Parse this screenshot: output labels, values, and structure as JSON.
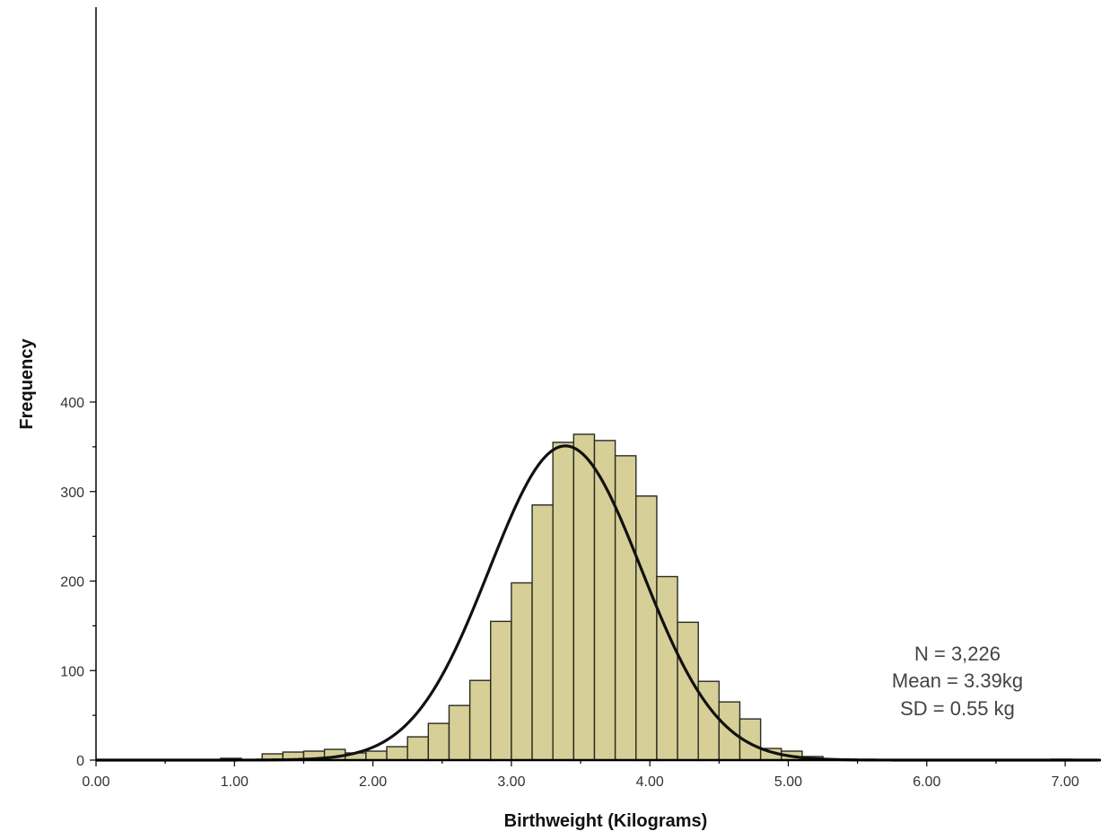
{
  "chart_data": {
    "type": "bar",
    "title": "",
    "xlabel": "Birthweight (Kilograms)",
    "ylabel": "Frequency",
    "xlim": [
      0,
      7.25
    ],
    "ylim": [
      0,
      420
    ],
    "bin_width": 0.15,
    "x_ticks": [
      "0.00",
      "1.00",
      "2.00",
      "3.00",
      "4.00",
      "5.00",
      "6.00",
      "7.00"
    ],
    "y_ticks": [
      "0",
      "100",
      "200",
      "300",
      "400"
    ],
    "bins": [
      {
        "x": 0.9,
        "value": 2
      },
      {
        "x": 1.2,
        "value": 7
      },
      {
        "x": 1.35,
        "value": 9
      },
      {
        "x": 1.5,
        "value": 10
      },
      {
        "x": 1.65,
        "value": 12
      },
      {
        "x": 1.8,
        "value": 8
      },
      {
        "x": 1.95,
        "value": 10
      },
      {
        "x": 2.1,
        "value": 15
      },
      {
        "x": 2.25,
        "value": 26
      },
      {
        "x": 2.4,
        "value": 41
      },
      {
        "x": 2.55,
        "value": 61
      },
      {
        "x": 2.7,
        "value": 89
      },
      {
        "x": 2.85,
        "value": 155
      },
      {
        "x": 3.0,
        "value": 198
      },
      {
        "x": 3.15,
        "value": 285
      },
      {
        "x": 3.3,
        "value": 355
      },
      {
        "x": 3.45,
        "value": 364
      },
      {
        "x": 3.6,
        "value": 357
      },
      {
        "x": 3.75,
        "value": 340
      },
      {
        "x": 3.9,
        "value": 295
      },
      {
        "x": 4.05,
        "value": 205
      },
      {
        "x": 4.2,
        "value": 154
      },
      {
        "x": 4.35,
        "value": 88
      },
      {
        "x": 4.5,
        "value": 65
      },
      {
        "x": 4.65,
        "value": 46
      },
      {
        "x": 4.8,
        "value": 13
      },
      {
        "x": 4.95,
        "value": 10
      },
      {
        "x": 5.1,
        "value": 4
      },
      {
        "x": 6.9,
        "value": 1
      }
    ],
    "normal_curve": {
      "n": 3226,
      "mean": 3.39,
      "sd": 0.55
    },
    "annotations": [
      "N = 3,226",
      "Mean = 3.39kg",
      "SD = 0.55 kg"
    ],
    "grid": false,
    "colors": {
      "bar_fill": "#d6cf97",
      "bar_stroke": "#2b2b22",
      "curve": "#111111",
      "axis": "#000000"
    }
  }
}
